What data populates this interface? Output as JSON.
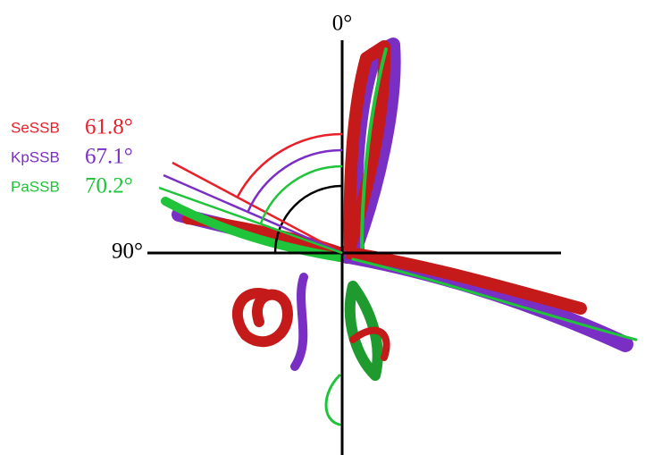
{
  "axes": {
    "top": "0°",
    "left": "90°"
  },
  "entries": [
    {
      "name": "SeSSB",
      "angle": "61.8°",
      "color": "#e8202a"
    },
    {
      "name": "KpSSB",
      "angle": "67.1°",
      "color": "#7a2fc4"
    },
    {
      "name": "PaSSB",
      "angle": "70.2°",
      "color": "#1fc43a"
    }
  ]
}
